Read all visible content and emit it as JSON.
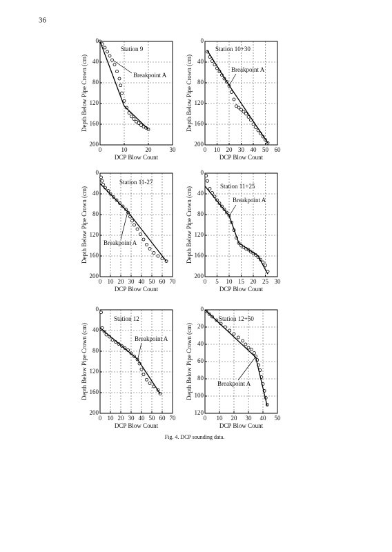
{
  "page_number": "36",
  "caption": "Fig. 4. DCP sounding data.",
  "chart_data": [
    {
      "type": "scatter",
      "title": "Station 9",
      "annotation": "Breakpoint A",
      "xlabel": "DCP Blow Count",
      "ylabel": "Depth Below Pipe Crown (cm)",
      "xlim": [
        0,
        30
      ],
      "ylim": [
        0,
        200
      ],
      "xticks": [
        0,
        10,
        20,
        30
      ],
      "yticks": [
        0,
        40,
        80,
        120,
        160,
        200
      ],
      "y_inverted": true,
      "grid": true,
      "series": [
        {
          "marker": "circle",
          "color": "#000000",
          "x": [
            0,
            1,
            2,
            3,
            4,
            5,
            6,
            7,
            8,
            8.5,
            9,
            10,
            11,
            12,
            13,
            14,
            15,
            16,
            17,
            18,
            19,
            20
          ],
          "values": [
            0,
            5,
            12,
            20,
            28,
            36,
            45,
            58,
            72,
            85,
            100,
            115,
            128,
            138,
            145,
            150,
            155,
            158,
            162,
            165,
            167,
            170
          ]
        },
        {
          "marker": "line",
          "color": "#000000",
          "x": [
            0,
            10,
            20
          ],
          "values": [
            0,
            125,
            170
          ]
        }
      ]
    },
    {
      "type": "scatter",
      "title": "Station 10+30",
      "annotation": "Breakpoint A",
      "xlabel": "DCP Blow Count",
      "ylabel": "Depth Below Pipe Crown (cm)",
      "xlim": [
        0,
        60
      ],
      "ylim": [
        0,
        200
      ],
      "xticks": [
        0,
        10,
        20,
        30,
        40,
        50,
        60
      ],
      "yticks": [
        0,
        40,
        80,
        120,
        160,
        200
      ],
      "y_inverted": true,
      "grid": true,
      "series": [
        {
          "marker": "circle",
          "color": "#000000",
          "x": [
            2,
            4,
            6,
            8,
            10,
            12,
            14,
            16,
            18,
            20,
            22,
            24,
            26,
            28,
            30,
            32,
            34,
            36,
            38,
            40,
            42,
            44,
            46,
            48,
            50,
            52
          ],
          "values": [
            20,
            30,
            38,
            45,
            52,
            58,
            65,
            72,
            78,
            86,
            98,
            112,
            125,
            128,
            132,
            136,
            140,
            146,
            152,
            160,
            166,
            172,
            178,
            184,
            190,
            196
          ]
        },
        {
          "marker": "line",
          "color": "#000000",
          "x": [
            2,
            20,
            52
          ],
          "values": [
            18,
            85,
            196
          ]
        }
      ]
    },
    {
      "type": "scatter",
      "title": "Station 11-27",
      "annotation": "Breakpoint A",
      "xlabel": "DCP Blow Count",
      "ylabel": "Depth Below Pipe Crown (cm)",
      "xlim": [
        0,
        70
      ],
      "ylim": [
        0,
        200
      ],
      "xticks": [
        0,
        10,
        20,
        30,
        40,
        50,
        60,
        70
      ],
      "yticks": [
        0,
        40,
        80,
        120,
        160,
        200
      ],
      "y_inverted": true,
      "grid": true,
      "series": [
        {
          "marker": "circle",
          "color": "#000000",
          "x": [
            1,
            2,
            3,
            5,
            8,
            10,
            13,
            16,
            19,
            22,
            25,
            27,
            29,
            31,
            33,
            36,
            39,
            42,
            45,
            48,
            52,
            56,
            60,
            64
          ],
          "values": [
            8,
            15,
            22,
            28,
            34,
            40,
            46,
            52,
            58,
            64,
            70,
            76,
            84,
            92,
            100,
            108,
            118,
            128,
            138,
            146,
            154,
            160,
            165,
            170
          ]
        },
        {
          "marker": "line",
          "color": "#000000",
          "x": [
            0,
            27,
            64
          ],
          "values": [
            20,
            75,
            170
          ]
        }
      ]
    },
    {
      "type": "scatter",
      "title": "Station 11+25",
      "annotation": "Breakpoint A",
      "xlabel": "DCP Blow Count",
      "ylabel": "Depth Below Pipe Crown (cm)",
      "xlim": [
        0,
        30
      ],
      "ylim": [
        0,
        200
      ],
      "xticks": [
        0,
        5,
        10,
        15,
        20,
        25,
        30
      ],
      "yticks": [
        0,
        40,
        80,
        120,
        160,
        200
      ],
      "y_inverted": true,
      "grid": true,
      "series": [
        {
          "marker": "circle",
          "color": "#000000",
          "x": [
            0.5,
            1,
            2,
            3,
            4,
            5,
            6,
            7,
            8,
            9,
            10,
            11,
            12,
            13,
            14,
            15,
            16,
            17,
            18,
            19,
            20,
            21,
            22,
            23,
            24,
            25,
            26
          ],
          "values": [
            5,
            15,
            30,
            38,
            45,
            52,
            58,
            64,
            70,
            76,
            82,
            95,
            110,
            125,
            135,
            140,
            143,
            146,
            148,
            152,
            155,
            158,
            162,
            167,
            172,
            178,
            190
          ]
        },
        {
          "marker": "line",
          "color": "#000000",
          "x": [
            0,
            10,
            14,
            22,
            26
          ],
          "values": [
            25,
            82,
            135,
            160,
            195
          ]
        }
      ]
    },
    {
      "type": "scatter",
      "title": "Station 12",
      "annotation": "Breakpoint A",
      "xlabel": "DCP Blow Count",
      "ylabel": "Depth Below Pipe Crown (cm)",
      "xlim": [
        0,
        70
      ],
      "ylim": [
        0,
        200
      ],
      "xticks": [
        0,
        10,
        20,
        30,
        40,
        50,
        60,
        70
      ],
      "yticks": [
        0,
        40,
        80,
        120,
        160,
        200
      ],
      "y_inverted": true,
      "grid": true,
      "series": [
        {
          "marker": "circle",
          "color": "#000000",
          "x": [
            1,
            2,
            4,
            6,
            9,
            12,
            15,
            18,
            21,
            24,
            27,
            30,
            33,
            36,
            38,
            40,
            42,
            45,
            48,
            52,
            56,
            58
          ],
          "values": [
            5,
            35,
            42,
            48,
            52,
            58,
            62,
            66,
            70,
            74,
            78,
            84,
            90,
            96,
            104,
            115,
            125,
            135,
            142,
            148,
            155,
            162
          ]
        },
        {
          "marker": "line",
          "color": "#000000",
          "x": [
            0,
            36,
            58
          ],
          "values": [
            35,
            95,
            162
          ]
        }
      ]
    },
    {
      "type": "scatter",
      "title": "Station 12+50",
      "annotation": "Breakpoint A",
      "xlabel": "DCP Blow Count",
      "ylabel": "Depth Below Pipe Crown (cm)",
      "xlim": [
        0,
        50
      ],
      "ylim": [
        0,
        120
      ],
      "xticks": [
        0,
        10,
        20,
        30,
        40,
        50
      ],
      "yticks": [
        0,
        20,
        40,
        60,
        80,
        100,
        120
      ],
      "y_inverted": true,
      "grid": true,
      "series": [
        {
          "marker": "circle",
          "color": "#000000",
          "x": [
            1,
            3,
            5,
            8,
            11,
            14,
            17,
            20,
            23,
            26,
            28,
            30,
            32,
            34,
            35,
            36,
            37,
            38,
            39,
            40,
            41,
            42,
            43
          ],
          "values": [
            2,
            5,
            8,
            12,
            16,
            20,
            24,
            28,
            32,
            36,
            40,
            44,
            46,
            50,
            54,
            58,
            64,
            70,
            78,
            86,
            94,
            102,
            110
          ]
        },
        {
          "marker": "line",
          "color": "#000000",
          "x": [
            0,
            35,
            43
          ],
          "values": [
            0,
            55,
            112
          ]
        }
      ]
    }
  ]
}
